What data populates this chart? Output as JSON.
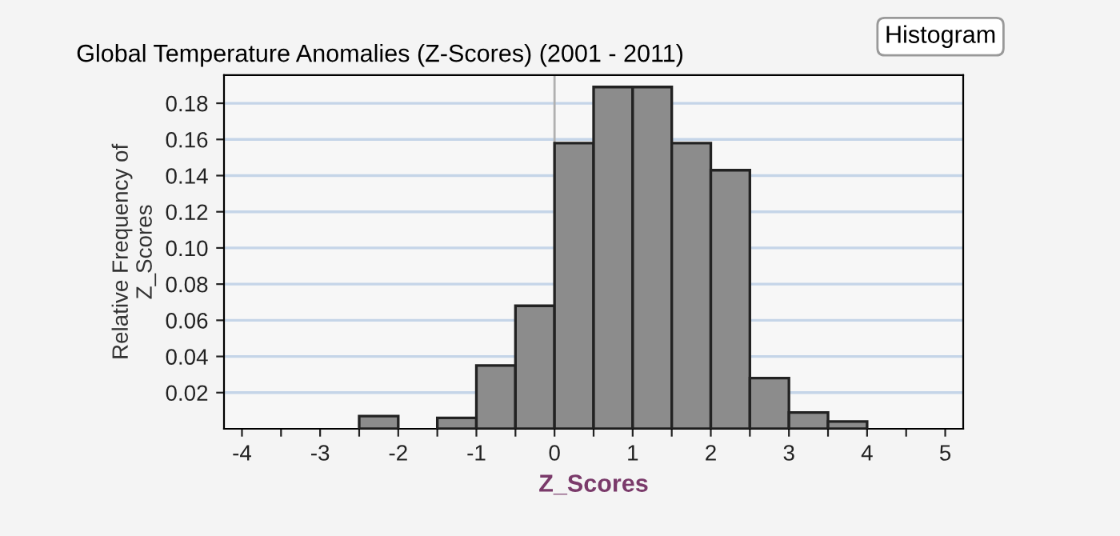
{
  "chart_data": {
    "type": "histogram",
    "title": "Global Temperature Anomalies (Z-Scores) (2001 - 2011)",
    "xlabel": "Z_Scores",
    "ylabel": "Relative Frequency of\nZ_Scores",
    "bins": [
      -2.5,
      -2,
      -1.5,
      -1,
      -0.5,
      0,
      0.5,
      1,
      1.5,
      2,
      2.5,
      3,
      3.5,
      4
    ],
    "values": [
      0.007,
      0,
      0.006,
      0.035,
      0.068,
      0.158,
      0.189,
      0.189,
      0.158,
      0.143,
      0.028,
      0.009,
      0.004
    ],
    "color": "#8c8c8c",
    "xlim": [
      -4.23,
      5.23
    ],
    "ylim": [
      0,
      0.1956
    ],
    "xticks": [
      -4,
      {
        "value": -3.5,
        "label": null
      },
      -3,
      {
        "value": -2.5,
        "label": null
      },
      -2,
      {
        "value": -1.5,
        "label": null
      },
      -1,
      {
        "value": -0.5,
        "label": null
      },
      0,
      {
        "value": 0.5,
        "label": null
      },
      1,
      {
        "value": 1.5,
        "label": null
      },
      2,
      {
        "value": 2.5,
        "label": null
      },
      3,
      {
        "value": 3.5,
        "label": null
      },
      4,
      {
        "value": 4.5,
        "label": null
      },
      5
    ],
    "yticks": [
      {
        "value": 0.02,
        "label": "0.02"
      },
      {
        "value": 0.04,
        "label": "0.04"
      },
      {
        "value": 0.06,
        "label": "0.06"
      },
      {
        "value": 0.08,
        "label": "0.08"
      },
      {
        "value": 0.1,
        "label": "0.10"
      },
      {
        "value": 0.12,
        "label": "0.12"
      },
      {
        "value": 0.14,
        "label": "0.14"
      },
      {
        "value": 0.16,
        "label": "0.16"
      },
      {
        "value": 0.18,
        "label": "0.18"
      }
    ],
    "grid": "y",
    "ref_lines": [
      {
        "axis": "x",
        "value": 0,
        "color": "#b0b0b0"
      }
    ],
    "annotations": [
      "Histogram"
    ]
  }
}
